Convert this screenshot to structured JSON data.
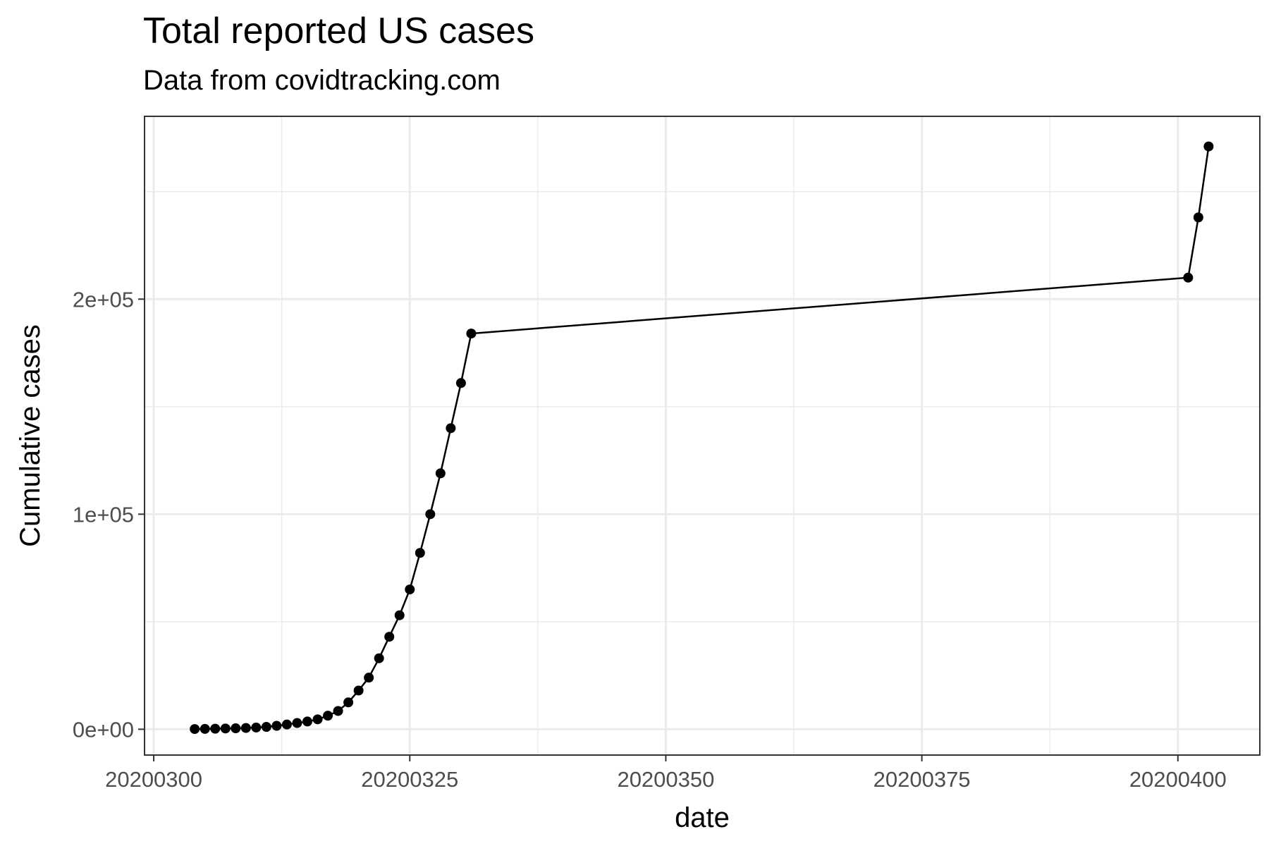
{
  "chart_data": {
    "type": "line",
    "title": "Total reported US cases",
    "subtitle": "Data from covidtracking.com",
    "xlabel": "date",
    "ylabel": "Cumulative cases",
    "xlim": [
      20200299.1,
      20200408.0
    ],
    "ylim": [
      -12000,
      285000
    ],
    "x_ticks": [
      20200300,
      20200325,
      20200350,
      20200375,
      20200400
    ],
    "x_tick_labels": [
      "20200300",
      "20200325",
      "20200350",
      "20200375",
      "20200400"
    ],
    "y_ticks": [
      0,
      100000,
      200000
    ],
    "y_tick_labels": [
      "0e+00",
      "1e+05",
      "2e+05"
    ],
    "grid": true,
    "markers": true,
    "color": "#000000",
    "series": [
      {
        "x": [
          20200304,
          20200305,
          20200306,
          20200307,
          20200308,
          20200309,
          20200310,
          20200311,
          20200312,
          20200313,
          20200314,
          20200315,
          20200316,
          20200317,
          20200318,
          20200319,
          20200320,
          20200321,
          20200322,
          20200323,
          20200324,
          20200325,
          20200326,
          20200327,
          20200328,
          20200329,
          20200330,
          20200331,
          20200401,
          20200402,
          20200403
        ],
        "y": [
          100,
          150,
          250,
          350,
          450,
          600,
          800,
          1100,
          1600,
          2200,
          2900,
          3600,
          4600,
          6300,
          8500,
          12500,
          18000,
          24000,
          33000,
          43000,
          53000,
          65000,
          82000,
          100000,
          119000,
          140000,
          161000,
          184000,
          210000,
          238000,
          271000
        ]
      }
    ]
  }
}
